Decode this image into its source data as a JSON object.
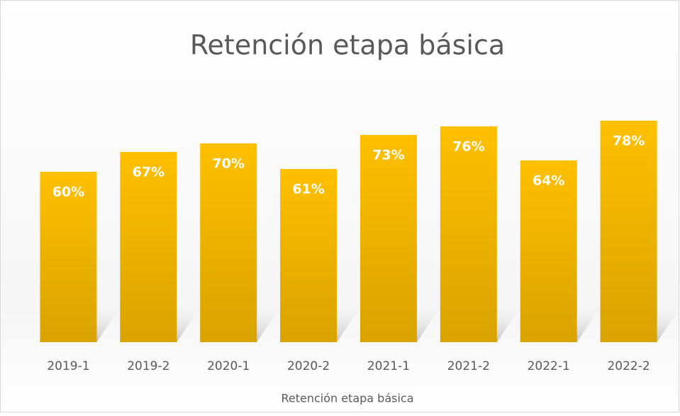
{
  "chart_data": {
    "type": "bar",
    "title": "Retención etapa básica",
    "categories": [
      "2019-1",
      "2019-2",
      "2020-1",
      "2020-2",
      "2021-1",
      "2021-2",
      "2022-1",
      "2022-2"
    ],
    "values": [
      60,
      67,
      70,
      61,
      73,
      76,
      64,
      78
    ],
    "value_labels": [
      "60%",
      "67%",
      "70%",
      "61%",
      "73%",
      "76%",
      "64%",
      "78%"
    ],
    "color": "#ffc000",
    "ylim": [
      0,
      100
    ],
    "x_label": "Retención etapa básica"
  }
}
